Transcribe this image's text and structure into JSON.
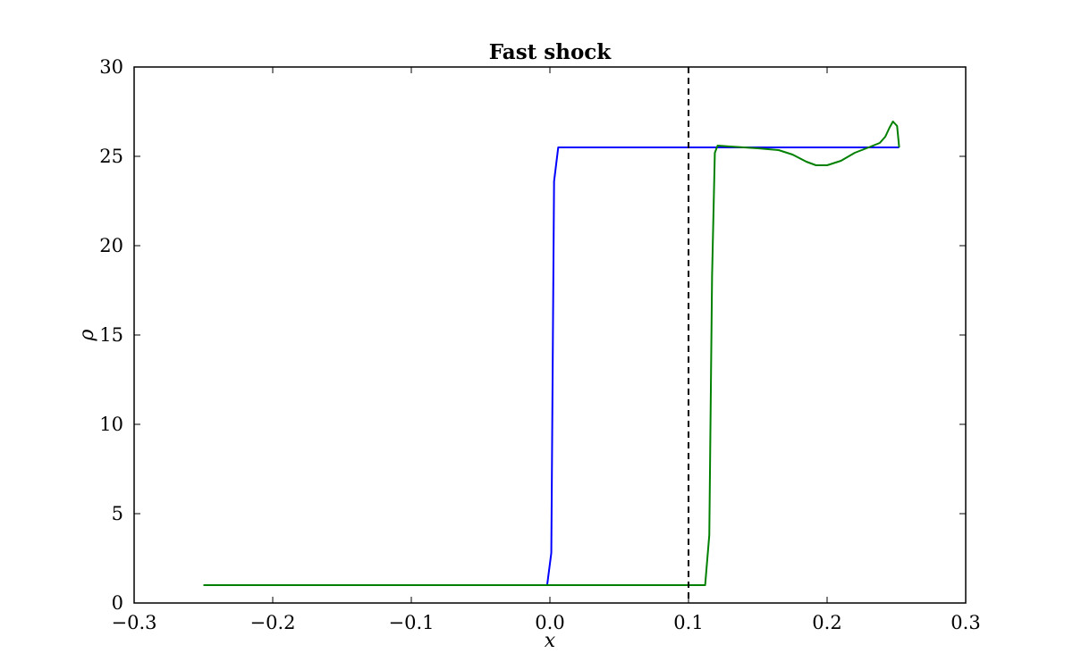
{
  "chart_data": {
    "type": "line",
    "title": "Fast shock",
    "xlabel": "x",
    "ylabel": "ρ",
    "xlim": [
      -0.3,
      0.3
    ],
    "ylim": [
      0,
      30
    ],
    "xticks": [
      -0.3,
      -0.2,
      -0.1,
      0.0,
      0.1,
      0.2,
      0.3
    ],
    "xtick_labels": [
      "−0.3",
      "−0.2",
      "−0.1",
      "0.0",
      "0.1",
      "0.2",
      "0.3"
    ],
    "yticks": [
      0,
      5,
      10,
      15,
      20,
      25,
      30
    ],
    "ytick_labels": [
      "0",
      "5",
      "10",
      "15",
      "20",
      "25",
      "30"
    ],
    "grid": false,
    "vline": {
      "x": 0.1,
      "style": "dashed",
      "color": "#000000"
    },
    "series": [
      {
        "color": "#0000ff",
        "points": [
          [
            -0.25,
            1.0
          ],
          [
            -0.002,
            1.0
          ],
          [
            0.001,
            2.8
          ],
          [
            0.003,
            23.6
          ],
          [
            0.006,
            25.5
          ],
          [
            0.1,
            25.5
          ],
          [
            0.2,
            25.5
          ],
          [
            0.252,
            25.5
          ]
        ]
      },
      {
        "color": "#008000",
        "points": [
          [
            -0.25,
            1.0
          ],
          [
            0.1,
            1.0
          ],
          [
            0.112,
            1.0
          ],
          [
            0.115,
            3.8
          ],
          [
            0.117,
            18.3
          ],
          [
            0.119,
            25.2
          ],
          [
            0.121,
            25.6
          ],
          [
            0.13,
            25.55
          ],
          [
            0.15,
            25.45
          ],
          [
            0.165,
            25.35
          ],
          [
            0.175,
            25.1
          ],
          [
            0.185,
            24.7
          ],
          [
            0.192,
            24.5
          ],
          [
            0.2,
            24.5
          ],
          [
            0.21,
            24.75
          ],
          [
            0.22,
            25.2
          ],
          [
            0.23,
            25.5
          ],
          [
            0.238,
            25.75
          ],
          [
            0.242,
            26.1
          ],
          [
            0.245,
            26.6
          ],
          [
            0.2475,
            26.95
          ],
          [
            0.2505,
            26.7
          ],
          [
            0.252,
            25.5
          ]
        ]
      }
    ]
  }
}
